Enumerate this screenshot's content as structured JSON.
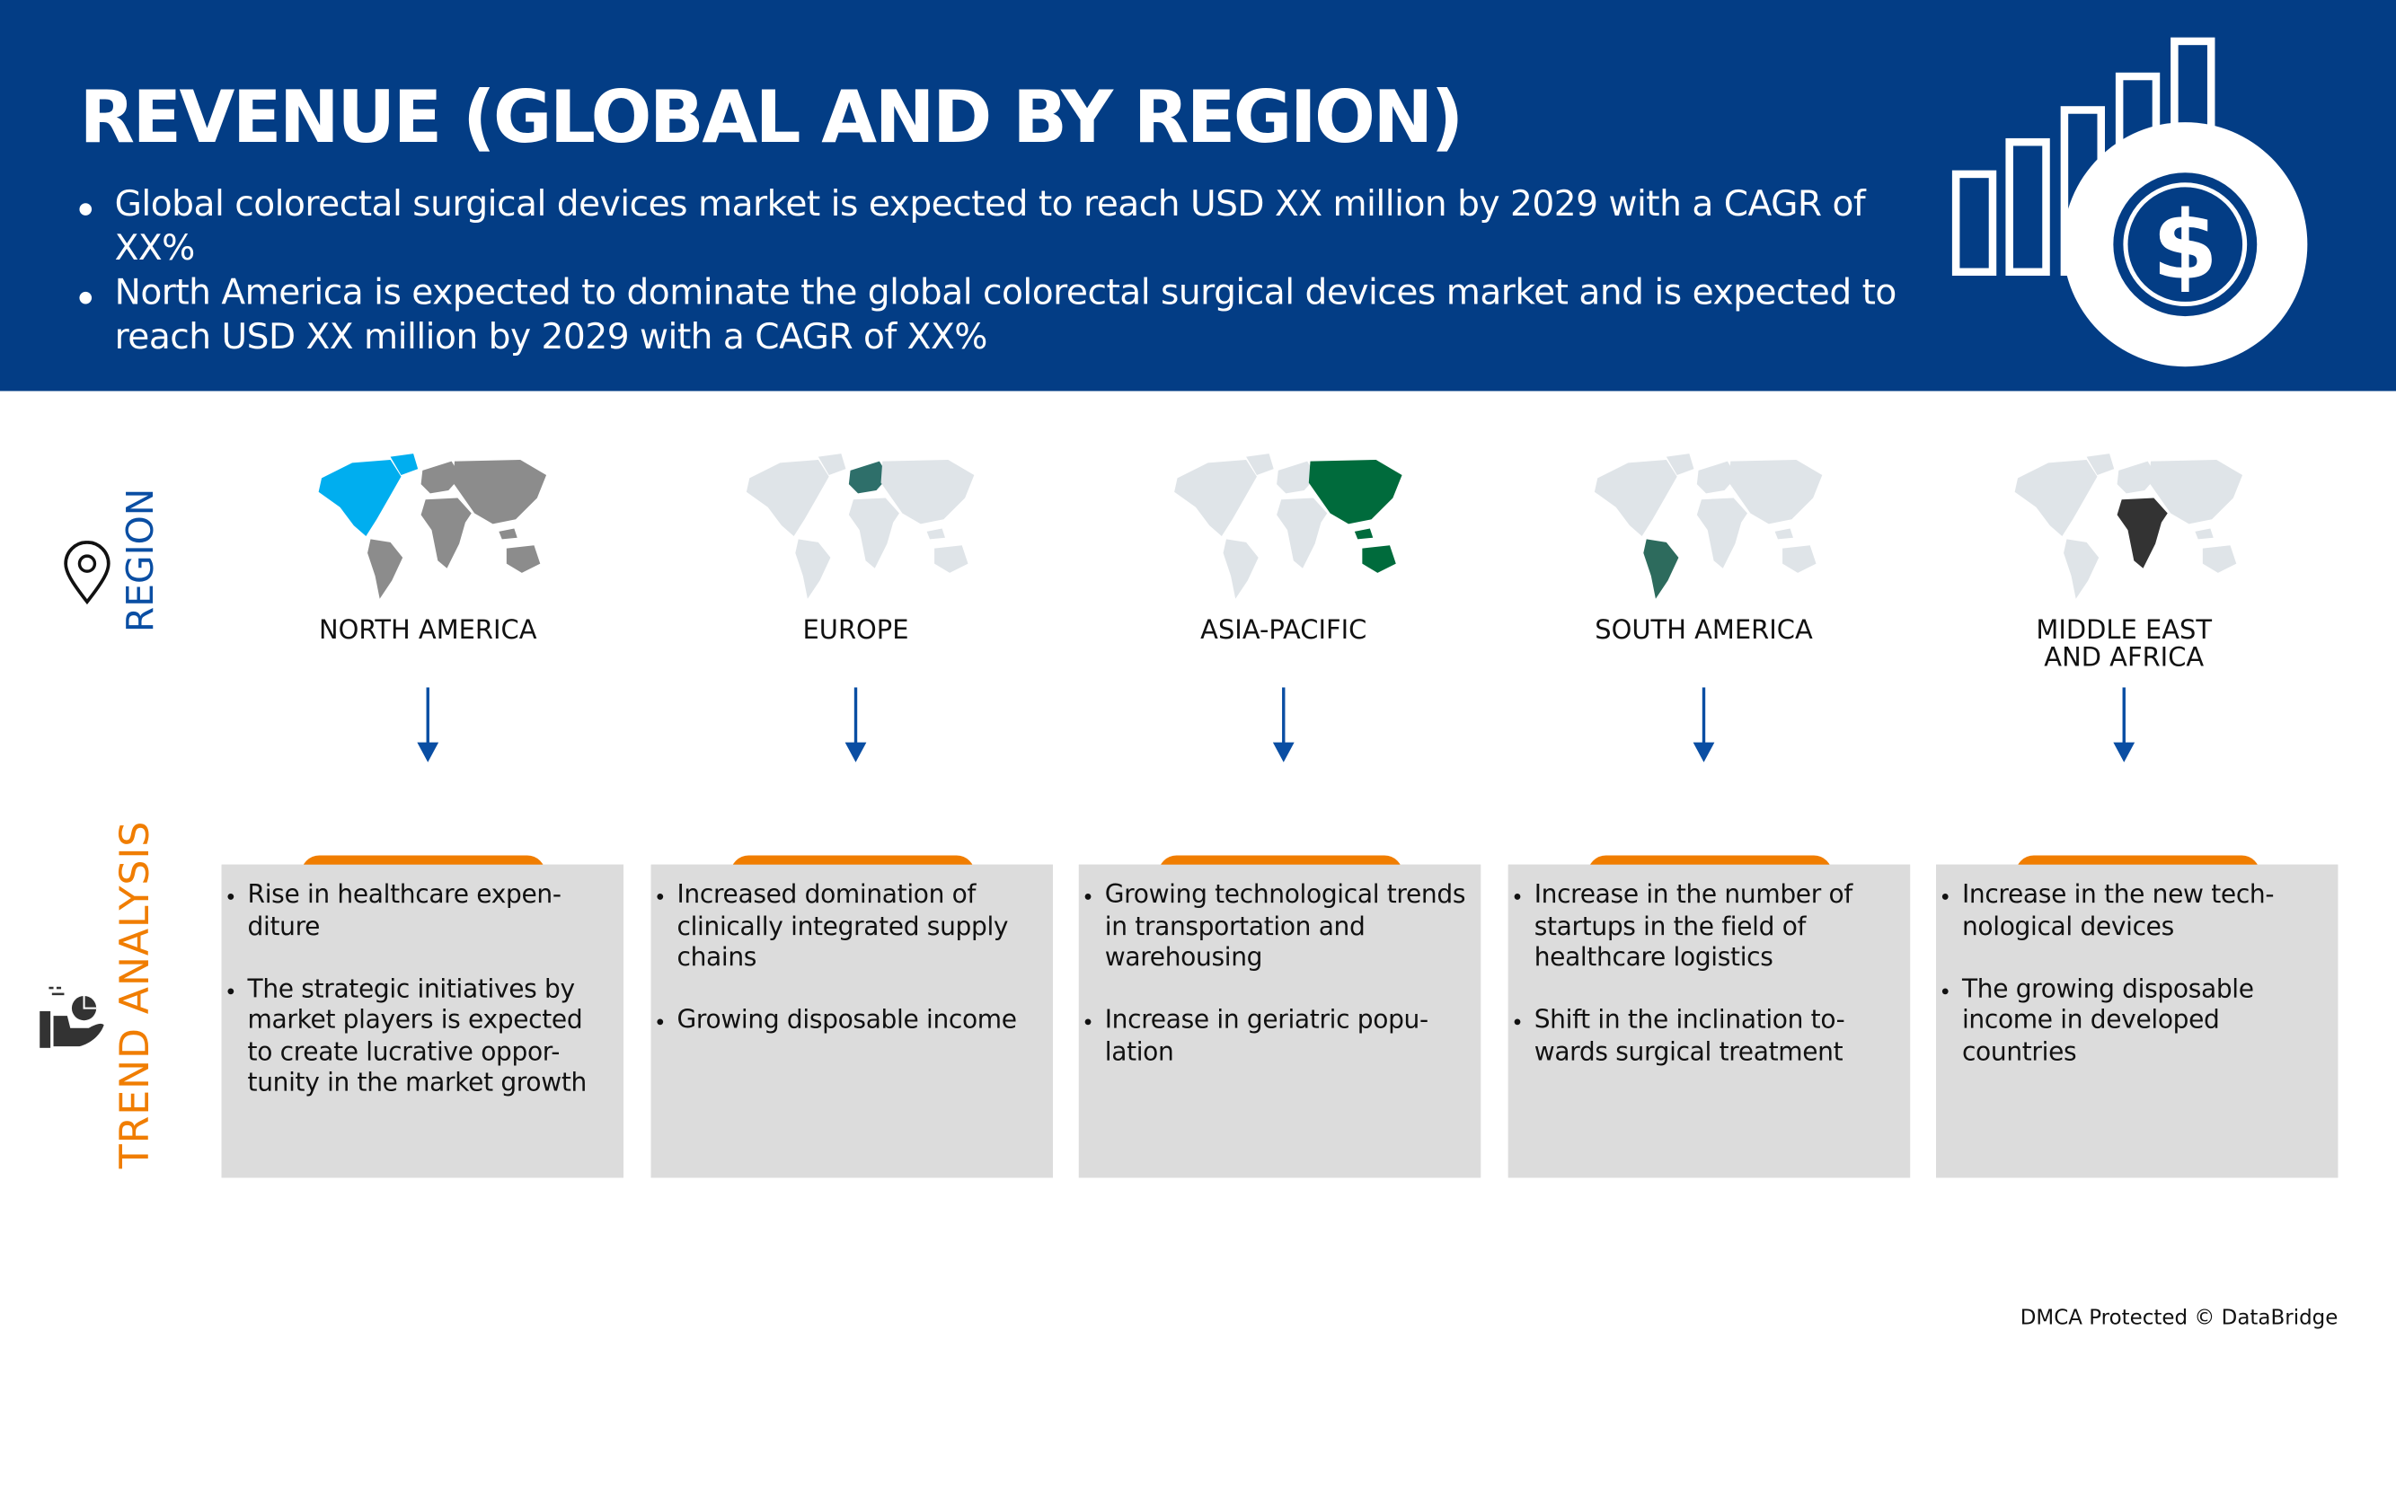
{
  "header": {
    "title": "REVENUE (GLOBAL AND BY REGION)",
    "bullets": [
      "Global colorectal surgical devices market is expected to reach USD XX million by 2029 with a CAGR of XX%",
      "North America is expected to dominate the global colorectal surgical devices market and is expected to reach USD XX million by 2029 with a CAGR of XX%"
    ],
    "icon": "bar-chart-dollar-icon",
    "background_color": "#033d85"
  },
  "region_section": {
    "label": "REGION",
    "icon": "location-pin-icon",
    "label_color": "#0a4ea3"
  },
  "trend_section": {
    "label": "TREND ANALYSIS",
    "icon": "hand-pie-chart-icon",
    "label_color": "#f07d00"
  },
  "regions": [
    {
      "name": "NORTH AMERICA",
      "highlight": "na",
      "highlight_color": "#00aeef",
      "trends": [
        "Rise in healthcare expen-diture",
        "The strategic initiatives by market players is expected to create lucrative oppor-tunity in the market growth"
      ]
    },
    {
      "name": "EUROPE",
      "highlight": "eu",
      "highlight_color": "#2e6f6a",
      "trends": [
        "Increased domination of clinically integrated supply chains",
        "Growing disposable income"
      ]
    },
    {
      "name": "ASIA-PACIFIC",
      "highlight": "ap",
      "highlight_color": "#006b3c",
      "trends": [
        "Growing technological trends in transportation and warehousing",
        "Increase in geriatric popu-lation"
      ]
    },
    {
      "name": "SOUTH AMERICA",
      "highlight": "sa",
      "highlight_color": "#2d6b5d",
      "trends": [
        "Increase in the number of startups in the field of healthcare logistics",
        "Shift in the inclination to-wards surgical treatment"
      ]
    },
    {
      "name": "MIDDLE EAST AND AFRICA",
      "highlight": "mea",
      "highlight_color": "#333333",
      "trends": [
        "Increase in the new tech-nological devices",
        "The growing disposable income in developed countries"
      ]
    }
  ],
  "accent_color": "#f07d00",
  "footer": {
    "credit": "DMCA Protected © DataBridge"
  }
}
